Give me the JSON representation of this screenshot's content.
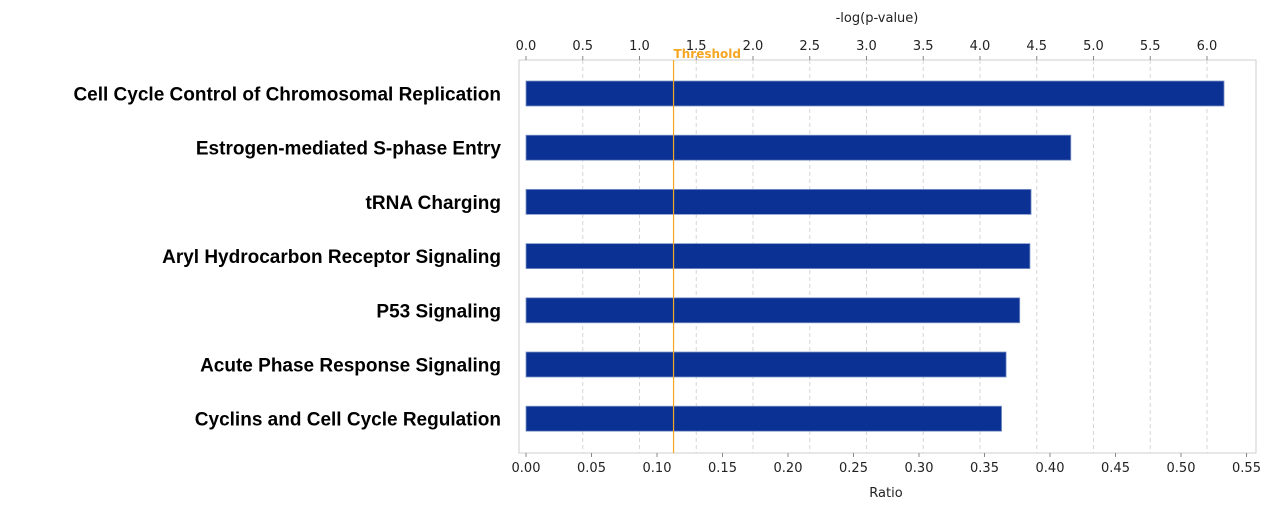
{
  "chart_data": {
    "type": "bar",
    "orientation": "horizontal",
    "categories": [
      "Cell Cycle Control of Chromosomal Replication",
      "Estrogen-mediated S-phase Entry",
      "tRNA Charging",
      "Aryl Hydrocarbon Receptor Signaling",
      "P53 Signaling",
      "Acute Phase Response Signaling",
      "Cyclins and Cell Cycle Regulation"
    ],
    "series": [
      {
        "values": [
          6.15,
          4.8,
          4.45,
          4.44,
          4.35,
          4.23,
          4.19
        ],
        "color": "#0a3193"
      }
    ],
    "top_axis": {
      "label": "-log(p-value)",
      "range": [
        0.0,
        6.4
      ],
      "ticks": [
        "0.0",
        "0.5",
        "1.0",
        "1.5",
        "2.0",
        "2.5",
        "3.0",
        "3.5",
        "4.0",
        "4.5",
        "5.0",
        "5.5",
        "6.0"
      ]
    },
    "bottom_axis": {
      "label": "Ratio",
      "range": [
        0.0,
        0.55
      ],
      "ticks": [
        "0.00",
        "0.05",
        "0.10",
        "0.15",
        "0.20",
        "0.25",
        "0.30",
        "0.35",
        "0.40",
        "0.45",
        "0.50",
        "0.55"
      ]
    },
    "threshold": {
      "label": "Threshold",
      "value": 1.3,
      "color": "#f5a623"
    },
    "grid": "vertical dashed",
    "bar_color": "#0a3193"
  }
}
